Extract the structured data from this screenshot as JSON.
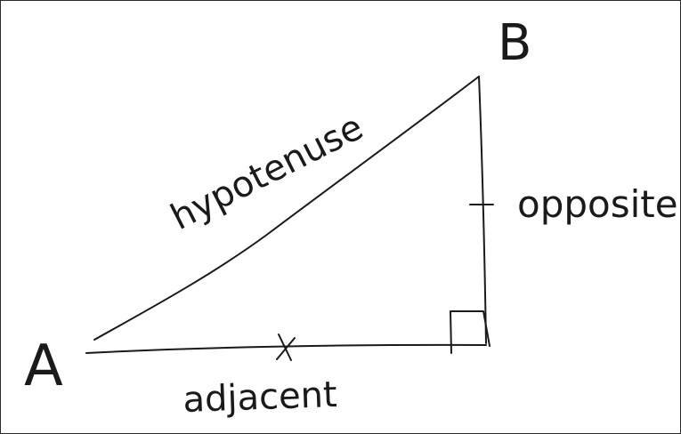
{
  "diagram": {
    "vertex_a": "A",
    "vertex_b": "B",
    "side_hypotenuse": "hypotenuse",
    "side_opposite": "opposite",
    "side_adjacent": "adjacent",
    "ink_color": "#1a1a1a",
    "background_color": "#ffffff"
  }
}
